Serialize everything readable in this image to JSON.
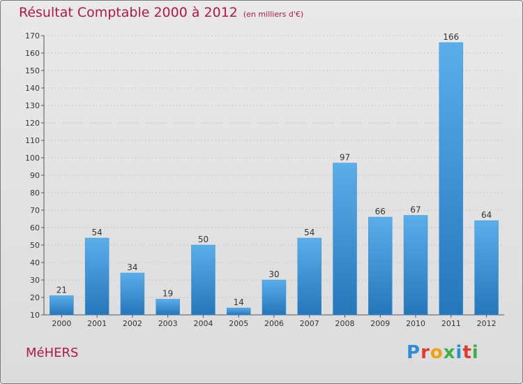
{
  "chart_data": {
    "type": "bar",
    "title": "Résultat Comptable 2000 à 2012",
    "subtitle": "(en milliers d'€)",
    "categories": [
      "2000",
      "2001",
      "2002",
      "2003",
      "2004",
      "2005",
      "2006",
      "2007",
      "2008",
      "2009",
      "2010",
      "2011",
      "2012"
    ],
    "values": [
      21,
      54,
      34,
      19,
      50,
      14,
      30,
      54,
      97,
      66,
      67,
      166,
      64
    ],
    "ylim": [
      10,
      170
    ],
    "yticks": [
      10,
      20,
      30,
      40,
      50,
      60,
      70,
      80,
      90,
      100,
      110,
      120,
      130,
      140,
      150,
      160,
      170
    ],
    "grid": true,
    "bar_color_top": "#5aaeea",
    "bar_color_bottom": "#2676ba"
  },
  "commune": "MéHERS",
  "brand": {
    "letters": [
      "P",
      "r",
      "o",
      "x",
      "i",
      "t",
      "i"
    ],
    "colors": [
      "#2c8fd6",
      "#e23a2a",
      "#f1a20b",
      "#3cb04a",
      "#2c8fd6",
      "#e23a2a",
      "#3cb04a"
    ]
  },
  "colors": {
    "accent": "#b3174a",
    "grid": "#c8c8c8"
  }
}
